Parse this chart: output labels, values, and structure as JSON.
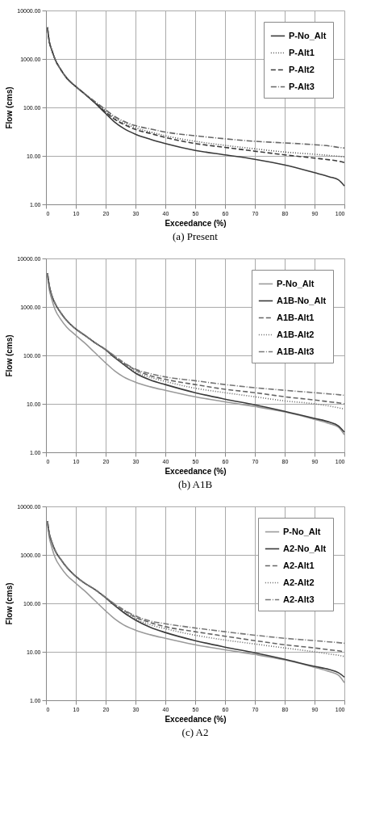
{
  "chart_data": [
    {
      "type": "line",
      "xlabel": "Exceedance (%)",
      "ylabel": "Flow (cms)",
      "annotations": [
        "(a)  Present"
      ],
      "log": "y",
      "grid": true,
      "legend": "top right",
      "xlim": [
        0,
        100
      ],
      "xticks": [
        0,
        10,
        20,
        30,
        40,
        50,
        60,
        70,
        80,
        90,
        100
      ],
      "ylim": [
        1,
        10000
      ],
      "yticks": [
        {
          "value": 1,
          "label": "1.00"
        },
        {
          "value": 10,
          "label": "10.00"
        },
        {
          "value": 100,
          "label": "100.00"
        },
        {
          "value": 1000,
          "label": "1000.00"
        },
        {
          "value": 10000,
          "label": "10000.00"
        }
      ],
      "x": [
        0.5,
        1,
        2,
        3,
        5,
        7,
        10,
        13,
        16,
        20,
        23,
        26,
        30,
        35,
        40,
        50,
        60,
        70,
        80,
        90,
        95,
        98,
        100
      ],
      "series": [
        {
          "name": "P-No_Alt",
          "color": "#3a3a3a",
          "line_style": "solid",
          "values": [
            4500,
            2500,
            1500,
            1000,
            600,
            400,
            270,
            190,
            130,
            75,
            50,
            37,
            28,
            22,
            18,
            13,
            10.5,
            8.5,
            6.5,
            4.5,
            3.7,
            3.2,
            2.4
          ]
        },
        {
          "name": "P-Alt1",
          "color": "#555555",
          "line_style": "dotted",
          "values": [
            4500,
            2500,
            1500,
            1000,
            600,
            400,
            270,
            190,
            135,
            85,
            60,
            48,
            38,
            31,
            26,
            20,
            16.5,
            14,
            12,
            10.8,
            10.2,
            9.8,
            9.5
          ]
        },
        {
          "name": "P-Alt2",
          "color": "#3a3a3a",
          "line_style": "dashed",
          "values": [
            4500,
            2500,
            1500,
            1000,
            600,
            400,
            270,
            190,
            133,
            80,
            57,
            45,
            35,
            29,
            24,
            18,
            15,
            12.5,
            10.5,
            9,
            8.3,
            7.8,
            7.3
          ]
        },
        {
          "name": "P-Alt3",
          "color": "#666666",
          "line_style": "dashdot",
          "values": [
            4500,
            2500,
            1500,
            1000,
            600,
            400,
            270,
            190,
            138,
            90,
            65,
            52,
            42,
            36,
            31,
            26,
            22.5,
            20,
            18.5,
            17,
            16,
            15,
            14.5
          ]
        }
      ]
    },
    {
      "type": "line",
      "xlabel": "Exceedance (%)",
      "ylabel": "Flow (cms)",
      "annotations": [
        "(b)  A1B"
      ],
      "log": "y",
      "grid": true,
      "legend": "top right",
      "xlim": [
        0,
        100
      ],
      "xticks": [
        0,
        10,
        20,
        30,
        40,
        50,
        60,
        70,
        80,
        90,
        100
      ],
      "ylim": [
        1,
        10000
      ],
      "yticks": [
        {
          "value": 1,
          "label": "1.00"
        },
        {
          "value": 10,
          "label": "10.00"
        },
        {
          "value": 100,
          "label": "100.00"
        },
        {
          "value": 1000,
          "label": "1000.00"
        },
        {
          "value": 10000,
          "label": "10000.00"
        }
      ],
      "x": [
        0.5,
        1,
        2,
        3,
        5,
        7,
        10,
        13,
        16,
        20,
        23,
        26,
        30,
        35,
        40,
        50,
        60,
        70,
        80,
        90,
        95,
        98,
        100
      ],
      "series": [
        {
          "name": "P-No_Alt",
          "color": "#9a9a9a",
          "line_style": "solid",
          "values": [
            4500,
            2500,
            1400,
            900,
            550,
            380,
            260,
            180,
            120,
            70,
            48,
            36,
            28,
            22.5,
            19,
            14,
            11,
            8.8,
            6.8,
            4.8,
            3.9,
            3.3,
            2.3
          ]
        },
        {
          "name": "A1B-No_Alt",
          "color": "#3a3a3a",
          "line_style": "solid",
          "values": [
            5000,
            3000,
            1700,
            1200,
            750,
            520,
            350,
            260,
            190,
            130,
            90,
            65,
            43,
            31,
            25,
            17,
            12.5,
            9.5,
            7,
            5,
            4.2,
            3.5,
            2.6
          ]
        },
        {
          "name": "A1B-Alt1",
          "color": "#666666",
          "line_style": "dashed",
          "values": [
            5000,
            3000,
            1700,
            1200,
            750,
            520,
            350,
            260,
            190,
            132,
            95,
            70,
            50,
            38,
            32,
            25,
            20,
            17,
            14,
            12,
            11,
            10.5,
            10
          ]
        },
        {
          "name": "A1B-Alt2",
          "color": "#666666",
          "line_style": "dotted",
          "values": [
            5000,
            3000,
            1700,
            1200,
            750,
            520,
            350,
            260,
            190,
            131,
            92,
            67,
            46,
            35,
            29,
            21,
            17,
            14,
            11.5,
            10,
            9,
            8.3,
            7.8
          ]
        },
        {
          "name": "A1B-Alt3",
          "color": "#777777",
          "line_style": "dashdot",
          "values": [
            5000,
            3000,
            1700,
            1200,
            750,
            520,
            350,
            260,
            190,
            133,
            97,
            72,
            52,
            42,
            36,
            30,
            25,
            21.5,
            19,
            17,
            16,
            15.5,
            15
          ]
        }
      ]
    },
    {
      "type": "line",
      "xlabel": "Exceedance (%)",
      "ylabel": "Flow (cms)",
      "annotations": [
        "(c)  A2"
      ],
      "log": "y",
      "grid": true,
      "legend": "top right",
      "xlim": [
        0,
        100
      ],
      "xticks": [
        0,
        10,
        20,
        30,
        40,
        50,
        60,
        70,
        80,
        90,
        100
      ],
      "ylim": [
        1,
        10000
      ],
      "yticks": [
        {
          "value": 1,
          "label": "1.00"
        },
        {
          "value": 10,
          "label": "10.00"
        },
        {
          "value": 100,
          "label": "100.00"
        },
        {
          "value": 1000,
          "label": "1000.00"
        },
        {
          "value": 10000,
          "label": "10000.00"
        }
      ],
      "x": [
        0.5,
        1,
        2,
        3,
        5,
        7,
        10,
        13,
        16,
        20,
        23,
        26,
        30,
        35,
        40,
        50,
        60,
        70,
        80,
        90,
        95,
        98,
        100
      ],
      "series": [
        {
          "name": "P-No_Alt",
          "color": "#9a9a9a",
          "line_style": "solid",
          "values": [
            4500,
            2500,
            1400,
            900,
            550,
            380,
            260,
            180,
            120,
            70,
            48,
            36,
            28,
            22.5,
            19,
            14,
            11,
            8.8,
            6.8,
            4.8,
            3.9,
            3.3,
            2.3
          ]
        },
        {
          "name": "A2-No_Alt",
          "color": "#3a3a3a",
          "line_style": "solid",
          "values": [
            5000,
            3000,
            1800,
            1250,
            800,
            550,
            360,
            260,
            200,
            130,
            90,
            65,
            45,
            32,
            25,
            17,
            12.5,
            9.5,
            7,
            5,
            4.3,
            3.7,
            3.0
          ]
        },
        {
          "name": "A2-Alt1",
          "color": "#666666",
          "line_style": "dashed",
          "values": [
            5000,
            3000,
            1800,
            1250,
            800,
            550,
            360,
            260,
            200,
            132,
            95,
            72,
            52,
            40,
            33,
            26,
            21,
            17,
            14,
            12,
            11,
            10.5,
            10
          ]
        },
        {
          "name": "A2-Alt2",
          "color": "#666666",
          "line_style": "dotted",
          "values": [
            5000,
            3000,
            1800,
            1250,
            800,
            550,
            360,
            260,
            200,
            131,
            93,
            69,
            48,
            36,
            30,
            22,
            17.5,
            14.5,
            12,
            10,
            9,
            8.5,
            8
          ]
        },
        {
          "name": "A2-Alt3",
          "color": "#777777",
          "line_style": "dashdot",
          "values": [
            5000,
            3000,
            1800,
            1250,
            800,
            550,
            360,
            260,
            200,
            133,
            97,
            74,
            55,
            43,
            38,
            31,
            26,
            22,
            19,
            17,
            16,
            15.5,
            15
          ]
        }
      ]
    }
  ]
}
